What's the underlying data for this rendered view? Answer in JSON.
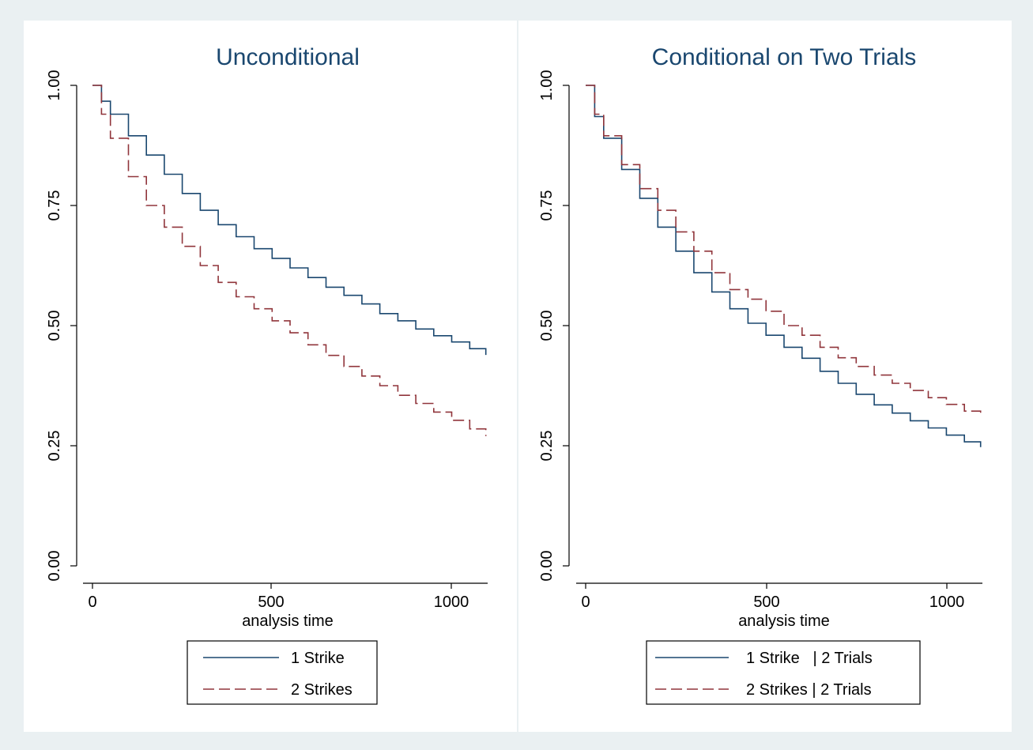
{
  "colors": {
    "background": "#eaf0f2",
    "panel": "#ffffff",
    "axis": "#000000",
    "title": "#1a476f",
    "series1": "#1a476f",
    "series2": "#90353b"
  },
  "chart_data": [
    {
      "type": "line",
      "title": "Unconditional",
      "xlabel": "analysis time",
      "ylabel": "",
      "xlim": [
        0,
        1100
      ],
      "ylim": [
        0,
        1
      ],
      "x_ticks": [
        "0",
        "500",
        "1000"
      ],
      "y_ticks": [
        "0.00",
        "0.25",
        "0.50",
        "0.75",
        "1.00"
      ],
      "grid": false,
      "legend_position": "bottom",
      "series": [
        {
          "name": "1 Strike",
          "style": "solid",
          "x": [
            0,
            25,
            50,
            100,
            150,
            200,
            250,
            300,
            350,
            400,
            450,
            500,
            550,
            600,
            650,
            700,
            750,
            800,
            850,
            900,
            950,
            1000,
            1050,
            1095
          ],
          "y": [
            1.0,
            0.967,
            0.94,
            0.895,
            0.855,
            0.815,
            0.775,
            0.74,
            0.71,
            0.685,
            0.66,
            0.64,
            0.62,
            0.6,
            0.58,
            0.563,
            0.545,
            0.525,
            0.51,
            0.493,
            0.479,
            0.466,
            0.452,
            0.439
          ]
        },
        {
          "name": "2 Strikes",
          "style": "dashed",
          "x": [
            0,
            25,
            50,
            100,
            150,
            200,
            250,
            300,
            350,
            400,
            450,
            500,
            550,
            600,
            650,
            700,
            750,
            800,
            850,
            900,
            950,
            1000,
            1050,
            1095
          ],
          "y": [
            1.0,
            0.94,
            0.89,
            0.81,
            0.75,
            0.705,
            0.665,
            0.625,
            0.59,
            0.56,
            0.535,
            0.51,
            0.485,
            0.46,
            0.438,
            0.415,
            0.395,
            0.375,
            0.355,
            0.338,
            0.32,
            0.303,
            0.285,
            0.27
          ]
        }
      ]
    },
    {
      "type": "line",
      "title": "Conditional on Two Trials",
      "xlabel": "analysis time",
      "ylabel": "",
      "xlim": [
        0,
        1100
      ],
      "ylim": [
        0,
        1
      ],
      "x_ticks": [
        "0",
        "500",
        "1000"
      ],
      "y_ticks": [
        "0.00",
        "0.25",
        "0.50",
        "0.75",
        "1.00"
      ],
      "grid": false,
      "legend_position": "bottom",
      "series": [
        {
          "name": "1 Strike   | 2 Trials",
          "style": "solid",
          "x": [
            0,
            25,
            50,
            100,
            150,
            200,
            250,
            300,
            350,
            400,
            450,
            500,
            550,
            600,
            650,
            700,
            750,
            800,
            850,
            900,
            950,
            1000,
            1050,
            1095
          ],
          "y": [
            1.0,
            0.935,
            0.89,
            0.825,
            0.765,
            0.705,
            0.655,
            0.61,
            0.57,
            0.535,
            0.505,
            0.48,
            0.455,
            0.432,
            0.405,
            0.38,
            0.357,
            0.335,
            0.318,
            0.302,
            0.287,
            0.272,
            0.258,
            0.247
          ]
        },
        {
          "name": "2 Strikes | 2 Trials",
          "style": "dashed",
          "x": [
            0,
            25,
            50,
            100,
            150,
            200,
            250,
            300,
            350,
            400,
            450,
            500,
            550,
            600,
            650,
            700,
            750,
            800,
            850,
            900,
            950,
            1000,
            1050,
            1095
          ],
          "y": [
            1.0,
            0.94,
            0.895,
            0.835,
            0.785,
            0.74,
            0.695,
            0.655,
            0.61,
            0.575,
            0.555,
            0.53,
            0.5,
            0.48,
            0.455,
            0.433,
            0.415,
            0.397,
            0.38,
            0.365,
            0.35,
            0.336,
            0.322,
            0.31
          ]
        }
      ]
    }
  ]
}
